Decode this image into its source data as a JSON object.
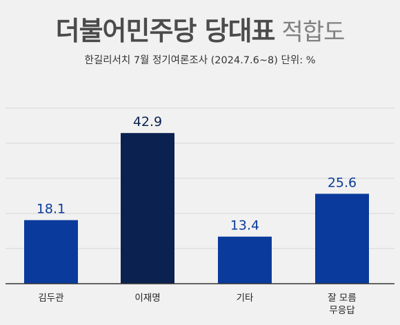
{
  "header": {
    "title_main": "더불어민주당 당대표",
    "title_suffix": "적합도",
    "subtitle": "한길리서치 7월 정기여론조사 (2024.7.6~8) 단위: %"
  },
  "colors": {
    "bar": "#0a3a9c",
    "bar_highlight": "#0b2150",
    "value_text": "#0a3a9c",
    "value_text_highlight": "#0b2150",
    "grid": "#d6d6d6",
    "axis": "#333333"
  },
  "chart_data": {
    "type": "bar",
    "title": "더불어민주당 당대표 적합도",
    "subtitle": "한길리서치 7월 정기여론조사 (2024.7.6~8) 단위: %",
    "categories": [
      "김두관",
      "이재명",
      "기타",
      "잘 모름\n무응답"
    ],
    "values": [
      18.1,
      42.9,
      13.4,
      25.6
    ],
    "highlight_index": 1,
    "ylim": [
      0,
      50
    ],
    "grid": true,
    "xlabel": "",
    "ylabel": ""
  }
}
